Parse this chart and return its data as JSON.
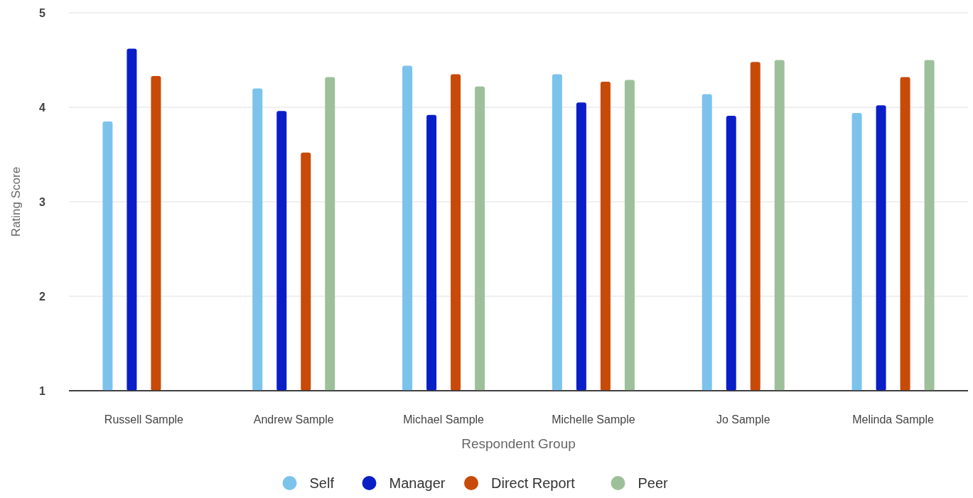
{
  "chart_data": {
    "type": "bar",
    "xlabel": "Respondent Group",
    "ylabel": "Rating Score",
    "categories": [
      "Russell Sample",
      "Andrew Sample",
      "Michael Sample",
      "Michelle Sample",
      "Jo Sample",
      "Melinda Sample"
    ],
    "series": [
      {
        "name": "Self",
        "color": "#7cc3ec",
        "values": [
          3.85,
          4.2,
          4.44,
          4.35,
          4.14,
          3.94
        ]
      },
      {
        "name": "Manager",
        "color": "#0a1ec8",
        "values": [
          4.62,
          3.96,
          3.92,
          4.05,
          3.91,
          4.02
        ]
      },
      {
        "name": "Direct Report",
        "color": "#c84a08",
        "values": [
          4.33,
          3.52,
          4.35,
          4.27,
          4.48,
          4.32
        ]
      },
      {
        "name": "Peer",
        "color": "#9dc09a",
        "values": [
          null,
          4.32,
          4.22,
          4.29,
          4.5,
          4.5
        ]
      }
    ],
    "ylim": [
      1,
      5
    ],
    "yticks": [
      1,
      2,
      3,
      4,
      5
    ],
    "grid": "y",
    "legend": "bottom"
  }
}
